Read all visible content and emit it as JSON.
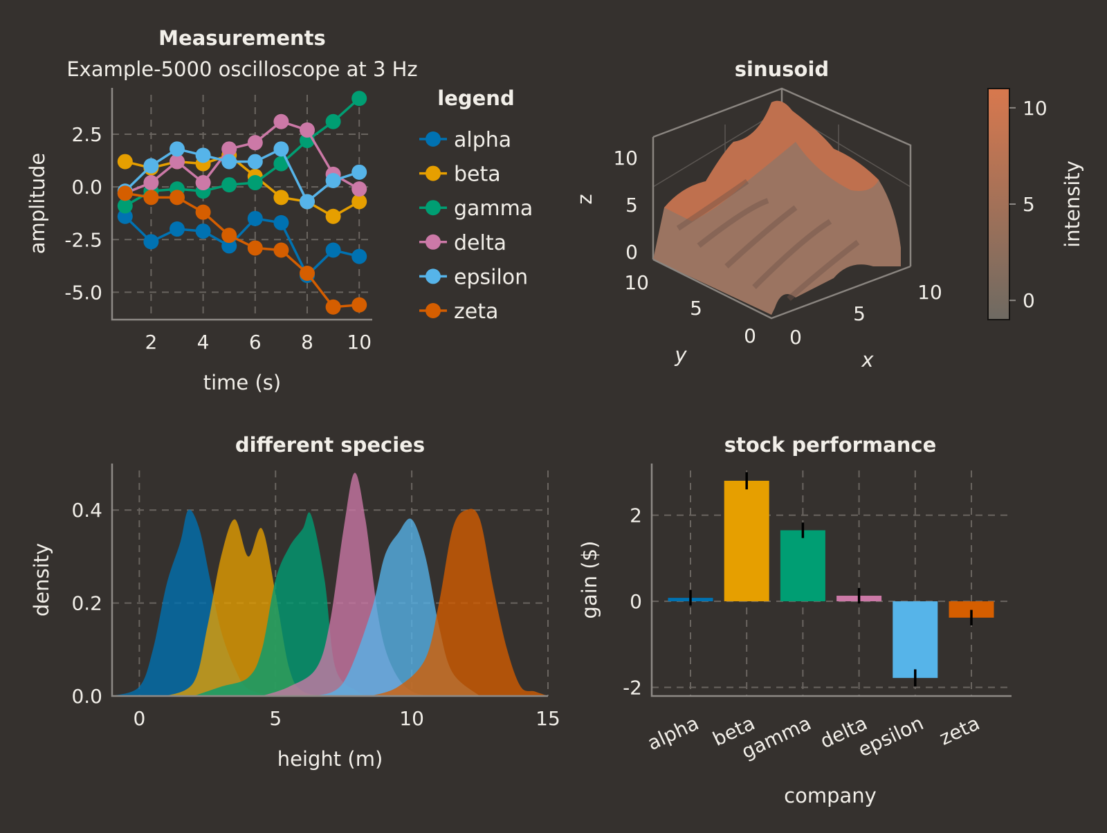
{
  "chart_data": [
    {
      "type": "line",
      "title": "Measurements",
      "subtitle": "Example-5000 oscilloscope at 3 Hz",
      "xlabel": "time (s)",
      "ylabel": "amplitude",
      "xlim": [
        0.5,
        10.5
      ],
      "ylim": [
        -6.3,
        4.7
      ],
      "xticks": [
        2,
        4,
        6,
        8,
        10
      ],
      "yticks": [
        -5.0,
        -2.5,
        0.0,
        2.5
      ],
      "ytick_labels": [
        "-5.0",
        "-2.5",
        "0.0",
        "2.5"
      ],
      "grid": true,
      "legend_title": "legend",
      "legend_position": "right",
      "x": [
        1,
        2,
        3,
        4,
        5,
        6,
        7,
        8,
        9,
        10
      ],
      "series": [
        {
          "name": "alpha",
          "color": "#0072b2",
          "values": [
            -1.4,
            -2.6,
            -2.0,
            -2.1,
            -2.8,
            -1.5,
            -1.7,
            -4.2,
            -3.0,
            -3.3
          ]
        },
        {
          "name": "beta",
          "color": "#e69f00",
          "values": [
            1.2,
            0.9,
            1.2,
            1.1,
            1.5,
            0.5,
            -0.5,
            -0.7,
            -1.4,
            -0.7
          ]
        },
        {
          "name": "gamma",
          "color": "#009e73",
          "values": [
            -0.9,
            -0.2,
            -0.1,
            -0.2,
            0.1,
            0.2,
            1.1,
            2.2,
            3.1,
            4.2
          ]
        },
        {
          "name": "delta",
          "color": "#cc79a7",
          "values": [
            -0.3,
            0.2,
            1.2,
            0.2,
            1.8,
            2.1,
            3.1,
            2.7,
            0.6,
            -0.1
          ]
        },
        {
          "name": "epsilon",
          "color": "#56b4e9",
          "values": [
            -0.2,
            1.0,
            1.8,
            1.5,
            1.2,
            1.2,
            1.8,
            -0.7,
            0.3,
            0.7
          ]
        },
        {
          "name": "zeta",
          "color": "#d55e00",
          "values": [
            -0.3,
            -0.5,
            -0.5,
            -1.2,
            -2.3,
            -2.9,
            -3.0,
            -4.1,
            -5.7,
            -5.6
          ]
        }
      ]
    },
    {
      "type": "surface",
      "title": "sinusoid",
      "xlabel": "x",
      "ylabel": "y",
      "zlabel": "z",
      "x_range": [
        0,
        10
      ],
      "y_range": [
        0,
        10
      ],
      "z_range": [
        -1,
        11
      ],
      "xticks": [
        0,
        5,
        10
      ],
      "yticks": [
        0,
        5,
        10
      ],
      "zticks": [
        0,
        5,
        10
      ],
      "colorbar_label": "intensity",
      "colorbar_ticks": [
        0,
        5,
        10
      ],
      "colorbar_range": [
        -1,
        11
      ],
      "colormap": [
        "#6e6a62",
        "#d8784e"
      ]
    },
    {
      "type": "area",
      "title": "different species",
      "xlabel": "height (m)",
      "ylabel": "density",
      "xlim": [
        -1,
        15
      ],
      "ylim": [
        0,
        0.5
      ],
      "xticks": [
        0,
        5,
        10,
        15
      ],
      "yticks": [
        0.0,
        0.2,
        0.4
      ],
      "ytick_labels": [
        "0.0",
        "0.2",
        "0.4"
      ],
      "grid": true,
      "series": [
        {
          "name": "alpha",
          "color": "#0072b2",
          "x": [
            -1,
            0,
            0.5,
            1,
            1.5,
            1.8,
            2.2,
            2.6,
            3,
            3.5,
            4,
            5
          ],
          "values": [
            0,
            0.02,
            0.1,
            0.24,
            0.33,
            0.4,
            0.36,
            0.25,
            0.14,
            0.06,
            0.015,
            0
          ]
        },
        {
          "name": "beta",
          "color": "#e69f00",
          "x": [
            1,
            2,
            2.5,
            3,
            3.5,
            4,
            4.5,
            5,
            5.5,
            6,
            7
          ],
          "values": [
            0,
            0.03,
            0.15,
            0.3,
            0.38,
            0.3,
            0.36,
            0.22,
            0.06,
            0.01,
            0
          ]
        },
        {
          "name": "gamma",
          "color": "#009e73",
          "x": [
            2,
            3,
            4,
            4.5,
            5,
            5.5,
            6,
            6.3,
            6.8,
            7.2,
            8,
            8.5
          ],
          "values": [
            0,
            0.02,
            0.04,
            0.1,
            0.25,
            0.32,
            0.36,
            0.39,
            0.25,
            0.06,
            0.01,
            0
          ]
        },
        {
          "name": "delta",
          "color": "#cc79a7",
          "x": [
            4.5,
            5.5,
            6.5,
            7,
            7.5,
            7.9,
            8.3,
            8.8,
            9.3,
            10,
            11
          ],
          "values": [
            0,
            0.02,
            0.06,
            0.16,
            0.36,
            0.48,
            0.38,
            0.16,
            0.06,
            0.01,
            0
          ]
        },
        {
          "name": "epsilon",
          "color": "#56b4e9",
          "x": [
            6.5,
            7.5,
            8.5,
            9,
            9.5,
            10,
            10.5,
            11,
            11.5,
            12.5
          ],
          "values": [
            0,
            0.03,
            0.18,
            0.3,
            0.35,
            0.38,
            0.3,
            0.15,
            0.05,
            0
          ]
        },
        {
          "name": "zeta",
          "color": "#d55e00",
          "x": [
            8.5,
            9.5,
            10.5,
            11,
            11.5,
            12,
            12.5,
            13,
            13.5,
            14,
            14.5,
            15
          ],
          "values": [
            0,
            0.02,
            0.08,
            0.2,
            0.36,
            0.4,
            0.38,
            0.23,
            0.1,
            0.02,
            0.01,
            0
          ]
        }
      ]
    },
    {
      "type": "bar",
      "title": "stock performance",
      "xlabel": "company",
      "ylabel": "gain ($)",
      "categories": [
        "alpha",
        "beta",
        "gamma",
        "delta",
        "epsilon",
        "zeta"
      ],
      "values": [
        0.08,
        2.8,
        1.65,
        0.13,
        -1.78,
        -0.38
      ],
      "errors": [
        0.18,
        0.2,
        0.18,
        0.18,
        0.2,
        0.18
      ],
      "colors": [
        "#0072b2",
        "#e69f00",
        "#009e73",
        "#cc79a7",
        "#56b4e9",
        "#d55e00"
      ],
      "ylim": [
        -2.2,
        3.2
      ],
      "yticks": [
        -2,
        0,
        2
      ],
      "grid": true
    }
  ]
}
